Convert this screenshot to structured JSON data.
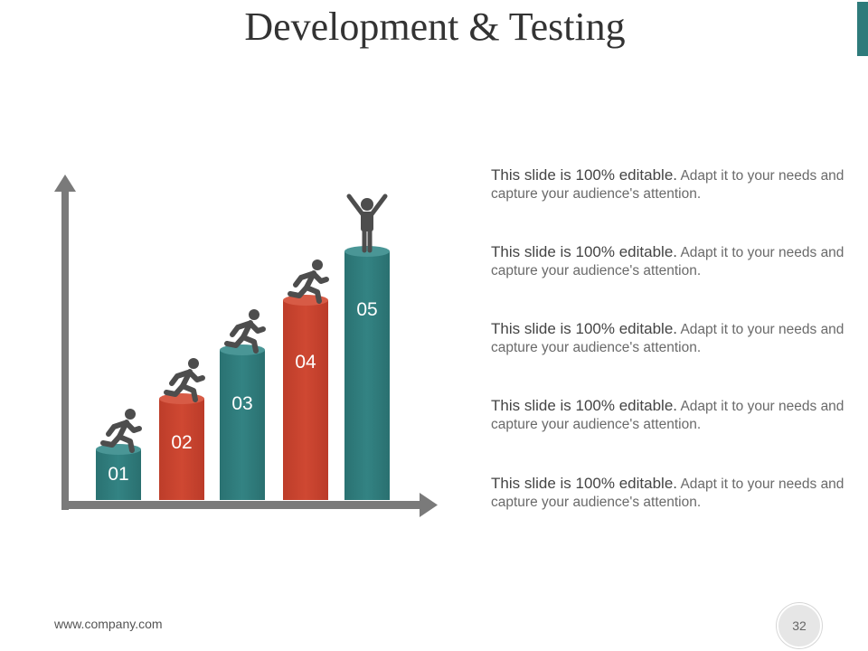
{
  "slide": {
    "title": "Development & Testing",
    "footer_url": "www.company.com",
    "page_number": "32"
  },
  "colors": {
    "teal": "#2e7b7b",
    "red": "#c8432f",
    "arrow_gray": "#7a7a7a",
    "figure_gray": "#4d4d4d",
    "accent_bar": "#2e7b7b"
  },
  "steps": [
    {
      "label": "01",
      "color": "teal",
      "figure": "runner-icon"
    },
    {
      "label": "02",
      "color": "red",
      "figure": "runner-icon"
    },
    {
      "label": "03",
      "color": "teal",
      "figure": "runner-icon"
    },
    {
      "label": "04",
      "color": "red",
      "figure": "runner-icon"
    },
    {
      "label": "05",
      "color": "teal",
      "figure": "winner-icon"
    }
  ],
  "descriptions": [
    {
      "strong": "This slide is 100% editable.",
      "text": " Adapt it to your needs and capture your audience's attention."
    },
    {
      "strong": "This slide is 100% editable.",
      "text": " Adapt it to your needs and capture your audience's attention."
    },
    {
      "strong": "This slide is 100% editable.",
      "text": " Adapt it to your needs and capture your audience's attention."
    },
    {
      "strong": "This slide is 100% editable.",
      "text": " Adapt it to your needs and capture your audience's attention."
    },
    {
      "strong": "This slide is 100% editable.",
      "text": " Adapt it to your needs and capture your audience's attention."
    }
  ]
}
